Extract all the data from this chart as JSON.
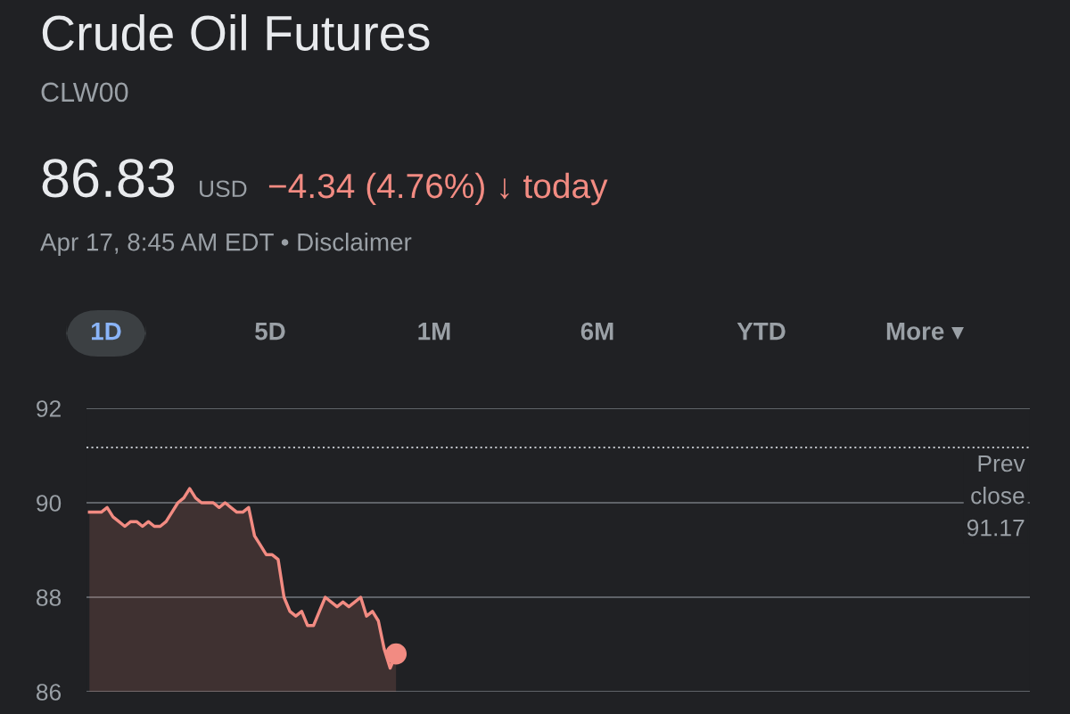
{
  "chart_data": {
    "type": "area",
    "title": "Crude Oil Futures",
    "subtitle": "CLW00",
    "annotations": [
      "86.83",
      "USD",
      "−4.34 (4.76%) ↓ today",
      "Apr 17, 8:45 AM EDT • Disclaimer",
      "1D",
      "5D",
      "1M",
      "6M",
      "YTD",
      "More ▾"
    ],
    "categories": [
      null,
      null,
      null,
      null,
      null,
      null,
      null,
      null,
      null,
      null,
      null,
      null,
      null,
      null,
      null,
      null,
      null,
      null,
      null,
      null,
      null,
      null,
      null,
      null,
      null,
      null,
      null,
      null,
      null,
      null,
      null,
      null,
      null,
      null,
      null,
      null,
      null,
      null,
      null,
      null,
      null,
      null,
      null,
      null,
      null,
      null,
      null,
      null,
      null,
      null,
      null,
      null,
      null,
      null,
      null,
      null,
      null,
      null,
      null,
      null,
      null,
      null,
      null,
      null,
      null,
      null,
      null,
      null,
      null,
      null,
      null,
      null,
      null,
      null,
      null,
      null,
      null,
      null,
      null,
      null,
      null,
      null,
      null,
      null,
      null,
      null,
      null,
      null,
      null,
      null,
      null,
      null,
      null,
      null,
      null,
      null,
      null,
      null,
      null,
      null,
      null,
      null,
      null,
      null,
      null,
      null,
      null,
      null,
      null,
      null,
      null,
      null,
      null,
      null,
      null,
      null,
      null,
      null,
      null,
      null,
      null,
      null,
      null,
      null,
      null,
      null,
      null,
      null,
      null,
      null,
      null,
      null,
      null,
      null,
      null,
      null,
      null,
      null,
      null,
      null,
      null,
      null,
      null,
      null,
      null,
      null,
      null,
      null,
      null,
      null,
      null,
      null,
      null,
      null,
      null,
      null,
      null,
      null,
      null,
      null
    ],
    "series": [
      {
        "color": "#f28b82",
        "values": [
          89.8,
          89.8,
          89.8,
          89.9,
          89.7,
          89.6,
          89.5,
          89.6,
          89.6,
          89.5,
          89.6,
          89.5,
          89.5,
          89.6,
          89.8,
          90.0,
          90.1,
          90.3,
          90.1,
          90.0,
          90.0,
          90.0,
          89.9,
          90.0,
          89.9,
          89.8,
          89.8,
          89.9,
          89.3,
          89.1,
          88.9,
          88.9,
          88.8,
          88.0,
          87.7,
          87.6,
          87.7,
          87.4,
          87.4,
          87.7,
          88.0,
          87.9,
          87.8,
          87.9,
          87.8,
          87.9,
          88.0,
          87.6,
          87.7,
          87.5,
          86.9,
          86.5,
          86.8,
          null,
          null,
          null,
          null,
          null,
          null,
          null,
          null,
          null,
          null,
          null,
          null,
          null,
          null,
          null,
          null,
          null,
          null,
          null,
          null,
          null,
          null,
          null,
          null,
          null,
          null,
          null,
          null,
          null,
          null,
          null,
          null,
          null,
          null,
          null,
          null,
          null,
          null,
          null,
          null,
          null,
          null,
          null,
          null,
          null,
          null,
          null,
          null,
          null,
          null,
          null,
          null,
          null,
          null,
          null,
          null,
          null,
          null,
          null,
          null,
          null,
          null,
          null,
          null,
          null,
          null,
          null,
          null,
          null,
          null,
          null,
          null,
          null,
          null,
          null,
          null,
          null,
          null,
          null,
          null,
          null,
          null,
          null,
          null,
          null,
          null,
          null,
          null,
          null,
          null,
          null,
          null,
          null,
          null,
          null,
          null,
          null,
          null,
          null,
          null,
          null,
          null,
          null,
          null,
          null,
          null,
          null
        ]
      },
      {
        "type": "scatter",
        "color": "#f28b82",
        "marker": "circle",
        "values": [
          null,
          null,
          null,
          null,
          null,
          null,
          null,
          null,
          null,
          null,
          null,
          null,
          null,
          null,
          null,
          null,
          null,
          null,
          null,
          null,
          null,
          null,
          null,
          null,
          null,
          null,
          null,
          null,
          null,
          null,
          null,
          null,
          null,
          null,
          null,
          null,
          null,
          null,
          null,
          null,
          null,
          null,
          null,
          null,
          null,
          null,
          null,
          null,
          null,
          null,
          null,
          null,
          86.8,
          null,
          null,
          null,
          null,
          null,
          null,
          null,
          null,
          null,
          null,
          null,
          null,
          null,
          null,
          null,
          null,
          null,
          null,
          null,
          null,
          null,
          null,
          null,
          null,
          null,
          null,
          null,
          null,
          null,
          null,
          null,
          null,
          null,
          null,
          null,
          null,
          null,
          null,
          null,
          null,
          null,
          null,
          null,
          null,
          null,
          null,
          null,
          null,
          null,
          null,
          null,
          null,
          null,
          null,
          null,
          null,
          null,
          null,
          null,
          null,
          null,
          null,
          null,
          null,
          null,
          null,
          null,
          null,
          null,
          null,
          null,
          null,
          null,
          null,
          null,
          null,
          null,
          null,
          null,
          null,
          null,
          null,
          null,
          null,
          null,
          null,
          null,
          null,
          null,
          null,
          null,
          null,
          null,
          null,
          null,
          null,
          null,
          null,
          null,
          null,
          null,
          null,
          null,
          null,
          null,
          null,
          null
        ]
      }
    ],
    "ylim": [
      86,
      92
    ],
    "yticks": [
      86,
      88,
      90,
      92
    ],
    "grid": "y",
    "tick_labels": "y",
    "marker": "none",
    "line_style": "solid",
    "ref_lines": [
      {
        "axis": "y",
        "value": 91.17,
        "label": "Prev\nclose\n91.17",
        "color": "#bdc1c6",
        "line_style": "dotted"
      }
    ]
  }
}
